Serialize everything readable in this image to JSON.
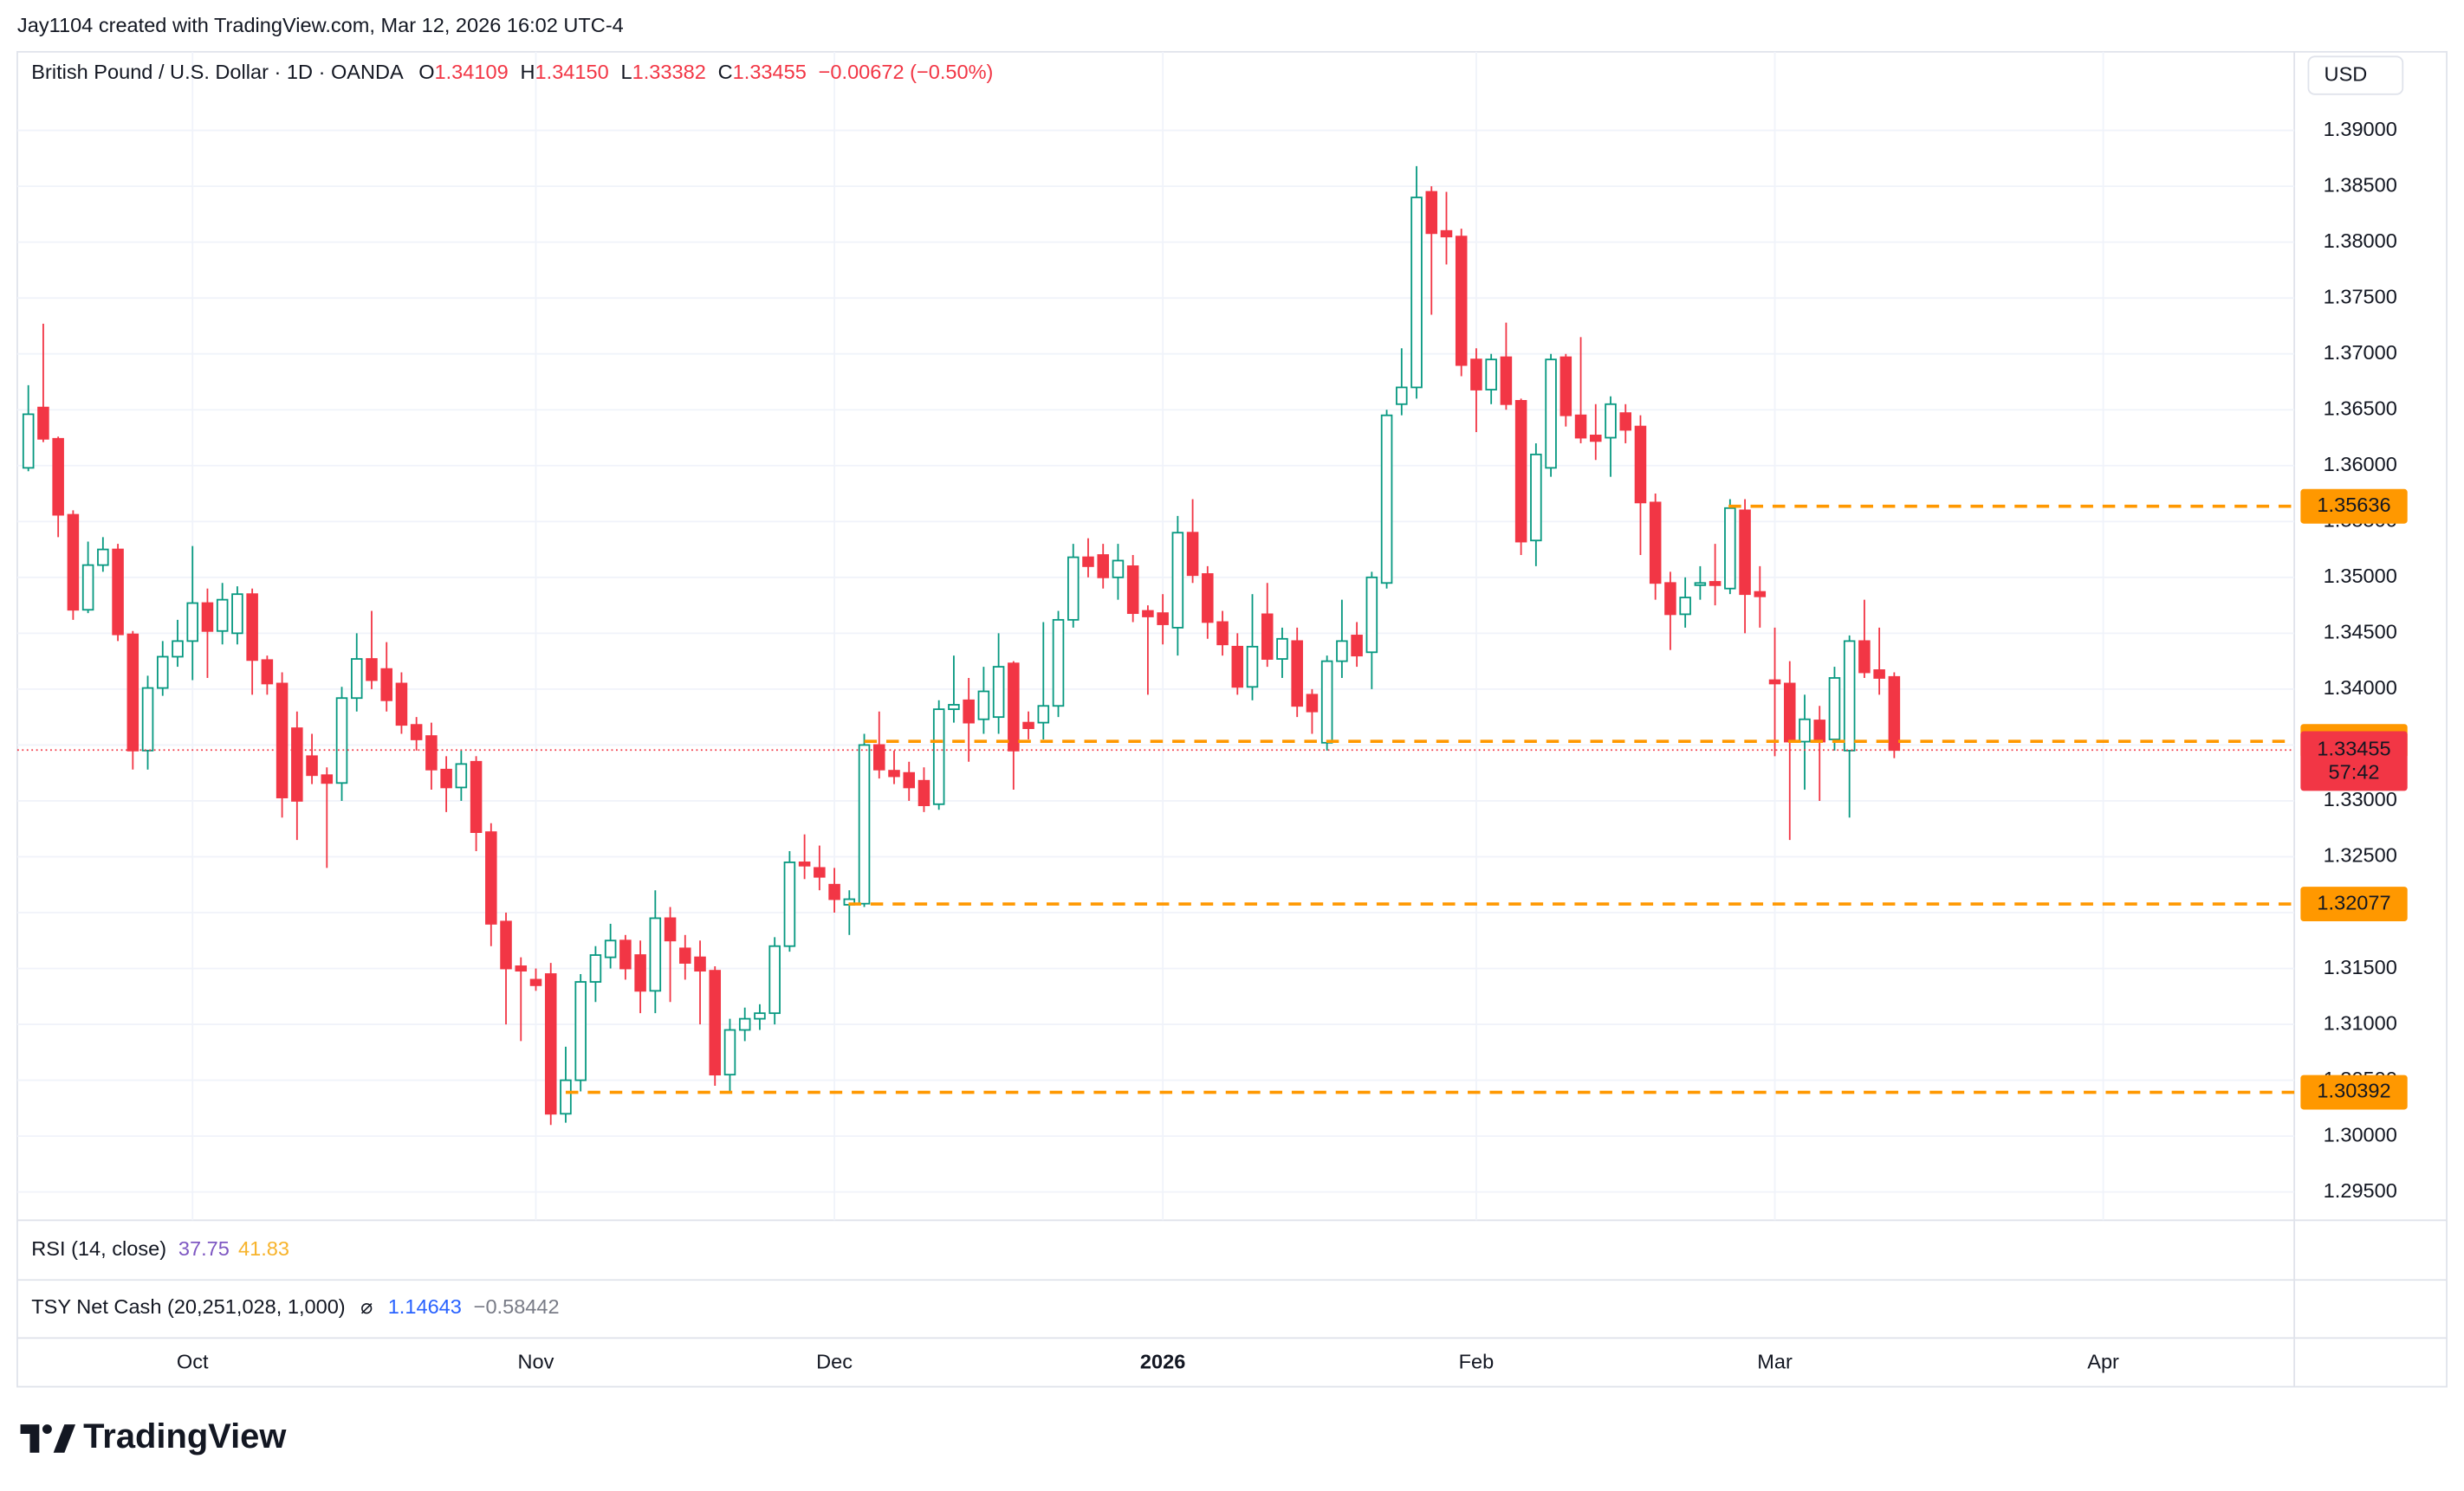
{
  "header": {
    "attribution": "Jay1104 created with TradingView.com, Mar 12, 2026 16:02 UTC-4"
  },
  "legend": {
    "symbol": "British Pound / U.S. Dollar · 1D · OANDA",
    "open_label": "O",
    "open": "1.34109",
    "high_label": "H",
    "high": "1.34150",
    "low_label": "L",
    "low": "1.33382",
    "close_label": "C",
    "close": "1.33455",
    "change": "−0.00672 (−0.50%)"
  },
  "chart_data": {
    "type": "candlestick",
    "currency": "USD",
    "up_color": "#089981",
    "down_color": "#f23645",
    "level_color": "#ff9800",
    "grid": true,
    "xlim": [
      -0.74,
      151.8
    ],
    "xticks": [
      {
        "value": 11,
        "label": "Oct"
      },
      {
        "value": 34,
        "label": "Nov"
      },
      {
        "value": 54,
        "label": "Dec"
      },
      {
        "value": 76,
        "label": "2026"
      },
      {
        "value": 97,
        "label": "Feb"
      },
      {
        "value": 117,
        "label": "Mar"
      },
      {
        "value": 139,
        "label": "Apr"
      }
    ],
    "ylim": [
      1.29247,
      1.39703
    ],
    "yticks": [
      {
        "value": 1.295,
        "label": "1.29500"
      },
      {
        "value": 1.3,
        "label": "1.30000"
      },
      {
        "value": 1.305,
        "label": "1.30500"
      },
      {
        "value": 1.31,
        "label": "1.31000"
      },
      {
        "value": 1.315,
        "label": "1.31500"
      },
      {
        "value": 1.32,
        "label": "1.32000"
      },
      {
        "value": 1.325,
        "label": "1.32500"
      },
      {
        "value": 1.33,
        "label": "1.33000"
      },
      {
        "value": 1.335,
        "label": "1.33500"
      },
      {
        "value": 1.34,
        "label": "1.34000"
      },
      {
        "value": 1.345,
        "label": "1.34500"
      },
      {
        "value": 1.35,
        "label": "1.35000"
      },
      {
        "value": 1.355,
        "label": "1.35500"
      },
      {
        "value": 1.36,
        "label": "1.36000"
      },
      {
        "value": 1.365,
        "label": "1.36500"
      },
      {
        "value": 1.37,
        "label": "1.37000"
      },
      {
        "value": 1.375,
        "label": "1.37500"
      },
      {
        "value": 1.38,
        "label": "1.38000"
      },
      {
        "value": 1.385,
        "label": "1.38500"
      },
      {
        "value": 1.39,
        "label": "1.39000"
      }
    ],
    "levels": [
      1.35636,
      1.33533,
      1.32077,
      1.30392
    ],
    "countdown": "57:42",
    "ohlc": [
      [
        1.3598,
        1.3672,
        1.3595,
        1.3646
      ],
      [
        1.3652,
        1.3727,
        1.3621,
        1.3624
      ],
      [
        1.3624,
        1.3626,
        1.3536,
        1.3556
      ],
      [
        1.3556,
        1.356,
        1.3462,
        1.3471
      ],
      [
        1.3471,
        1.3532,
        1.3468,
        1.3511
      ],
      [
        1.3511,
        1.3536,
        1.3505,
        1.3525
      ],
      [
        1.3525,
        1.353,
        1.3443,
        1.3449
      ],
      [
        1.3449,
        1.3452,
        1.3328,
        1.3345
      ],
      [
        1.3345,
        1.3412,
        1.3328,
        1.3401
      ],
      [
        1.3401,
        1.3443,
        1.3394,
        1.3429
      ],
      [
        1.3429,
        1.3462,
        1.342,
        1.3443
      ],
      [
        1.3443,
        1.3528,
        1.3408,
        1.3477
      ],
      [
        1.3477,
        1.349,
        1.341,
        1.3452
      ],
      [
        1.3452,
        1.3495,
        1.344,
        1.348
      ],
      [
        1.345,
        1.3492,
        1.344,
        1.3485
      ],
      [
        1.3485,
        1.349,
        1.3395,
        1.3426
      ],
      [
        1.3426,
        1.343,
        1.3395,
        1.3405
      ],
      [
        1.3405,
        1.3415,
        1.3285,
        1.3303
      ],
      [
        1.3365,
        1.338,
        1.3265,
        1.33
      ],
      [
        1.334,
        1.336,
        1.3315,
        1.3323
      ],
      [
        1.3323,
        1.333,
        1.324,
        1.3316
      ],
      [
        1.3316,
        1.3402,
        1.33,
        1.3392
      ],
      [
        1.3392,
        1.345,
        1.338,
        1.3427
      ],
      [
        1.3427,
        1.347,
        1.34,
        1.3408
      ],
      [
        1.3418,
        1.3442,
        1.338,
        1.339
      ],
      [
        1.3405,
        1.3415,
        1.336,
        1.3368
      ],
      [
        1.3368,
        1.3375,
        1.3345,
        1.3355
      ],
      [
        1.3358,
        1.337,
        1.331,
        1.3328
      ],
      [
        1.3328,
        1.334,
        1.329,
        1.3312
      ],
      [
        1.3312,
        1.3345,
        1.33,
        1.3333
      ],
      [
        1.3335,
        1.334,
        1.3255,
        1.3272
      ],
      [
        1.3272,
        1.328,
        1.317,
        1.319
      ],
      [
        1.3192,
        1.32,
        1.31,
        1.315
      ],
      [
        1.3152,
        1.316,
        1.3085,
        1.3148
      ],
      [
        1.314,
        1.315,
        1.313,
        1.3135
      ],
      [
        1.3145,
        1.3155,
        1.301,
        1.302
      ],
      [
        1.302,
        1.308,
        1.3012,
        1.305
      ],
      [
        1.305,
        1.3145,
        1.304,
        1.3138
      ],
      [
        1.3138,
        1.317,
        1.312,
        1.3162
      ],
      [
        1.316,
        1.319,
        1.315,
        1.3175
      ],
      [
        1.3175,
        1.318,
        1.314,
        1.315
      ],
      [
        1.3162,
        1.3175,
        1.311,
        1.313
      ],
      [
        1.313,
        1.322,
        1.311,
        1.3195
      ],
      [
        1.3195,
        1.3205,
        1.312,
        1.3175
      ],
      [
        1.3168,
        1.318,
        1.314,
        1.3155
      ],
      [
        1.316,
        1.3175,
        1.31,
        1.3148
      ],
      [
        1.3148,
        1.3152,
        1.3045,
        1.3055
      ],
      [
        1.3055,
        1.3105,
        1.304,
        1.3095
      ],
      [
        1.3095,
        1.3115,
        1.3085,
        1.3105
      ],
      [
        1.3105,
        1.3118,
        1.3095,
        1.311
      ],
      [
        1.311,
        1.3178,
        1.31,
        1.317
      ],
      [
        1.317,
        1.3255,
        1.3165,
        1.3245
      ],
      [
        1.3245,
        1.327,
        1.323,
        1.3242
      ],
      [
        1.324,
        1.326,
        1.322,
        1.3232
      ],
      [
        1.3225,
        1.324,
        1.32,
        1.3212
      ],
      [
        1.3207,
        1.322,
        1.318,
        1.3212
      ],
      [
        1.3208,
        1.336,
        1.3205,
        1.335
      ],
      [
        1.335,
        1.338,
        1.332,
        1.3328
      ],
      [
        1.3327,
        1.3345,
        1.3315,
        1.3322
      ],
      [
        1.3325,
        1.3335,
        1.33,
        1.3312
      ],
      [
        1.3318,
        1.333,
        1.329,
        1.3296
      ],
      [
        1.3297,
        1.339,
        1.3292,
        1.3382
      ],
      [
        1.3382,
        1.343,
        1.337,
        1.3386
      ],
      [
        1.339,
        1.341,
        1.3335,
        1.337
      ],
      [
        1.3373,
        1.342,
        1.336,
        1.3398
      ],
      [
        1.3375,
        1.345,
        1.336,
        1.342
      ],
      [
        1.3423,
        1.3425,
        1.331,
        1.3345
      ],
      [
        1.337,
        1.338,
        1.3355,
        1.3365
      ],
      [
        1.337,
        1.346,
        1.3355,
        1.3385
      ],
      [
        1.3385,
        1.347,
        1.3375,
        1.3462
      ],
      [
        1.3462,
        1.353,
        1.3455,
        1.3518
      ],
      [
        1.3518,
        1.3535,
        1.35,
        1.351
      ],
      [
        1.352,
        1.353,
        1.349,
        1.35
      ],
      [
        1.35,
        1.353,
        1.348,
        1.3515
      ],
      [
        1.351,
        1.352,
        1.346,
        1.3468
      ],
      [
        1.347,
        1.3475,
        1.3395,
        1.3465
      ],
      [
        1.3468,
        1.3485,
        1.344,
        1.3458
      ],
      [
        1.3455,
        1.3555,
        1.343,
        1.354
      ],
      [
        1.354,
        1.357,
        1.3495,
        1.3502
      ],
      [
        1.3503,
        1.351,
        1.3445,
        1.346
      ],
      [
        1.346,
        1.347,
        1.343,
        1.344
      ],
      [
        1.3438,
        1.345,
        1.3395,
        1.3402
      ],
      [
        1.3402,
        1.3485,
        1.339,
        1.3438
      ],
      [
        1.3467,
        1.3495,
        1.342,
        1.3427
      ],
      [
        1.3427,
        1.3455,
        1.341,
        1.3445
      ],
      [
        1.3443,
        1.3455,
        1.3375,
        1.3385
      ],
      [
        1.3395,
        1.34,
        1.336,
        1.338
      ],
      [
        1.3352,
        1.343,
        1.3345,
        1.3425
      ],
      [
        1.3425,
        1.348,
        1.341,
        1.3443
      ],
      [
        1.3448,
        1.346,
        1.342,
        1.343
      ],
      [
        1.3433,
        1.3505,
        1.34,
        1.35
      ],
      [
        1.3495,
        1.365,
        1.349,
        1.3645
      ],
      [
        1.3655,
        1.3705,
        1.3645,
        1.367
      ],
      [
        1.367,
        1.3868,
        1.366,
        1.384
      ],
      [
        1.3845,
        1.385,
        1.3735,
        1.3808
      ],
      [
        1.381,
        1.3845,
        1.378,
        1.3805
      ],
      [
        1.3805,
        1.3812,
        1.368,
        1.369
      ],
      [
        1.3695,
        1.3705,
        1.363,
        1.3668
      ],
      [
        1.3668,
        1.37,
        1.3655,
        1.3695
      ],
      [
        1.3697,
        1.3728,
        1.365,
        1.3655
      ],
      [
        1.3658,
        1.366,
        1.352,
        1.3532
      ],
      [
        1.3533,
        1.362,
        1.351,
        1.361
      ],
      [
        1.3598,
        1.37,
        1.359,
        1.3695
      ],
      [
        1.3697,
        1.37,
        1.3635,
        1.3645
      ],
      [
        1.3645,
        1.3715,
        1.362,
        1.3625
      ],
      [
        1.3627,
        1.3655,
        1.3605,
        1.3622
      ],
      [
        1.3625,
        1.3662,
        1.359,
        1.3655
      ],
      [
        1.3647,
        1.3655,
        1.362,
        1.3632
      ],
      [
        1.3635,
        1.3645,
        1.352,
        1.3567
      ],
      [
        1.3567,
        1.3575,
        1.348,
        1.3495
      ],
      [
        1.3495,
        1.3505,
        1.3435,
        1.3467
      ],
      [
        1.3467,
        1.35,
        1.3455,
        1.3482
      ],
      [
        1.3493,
        1.351,
        1.348,
        1.3495
      ],
      [
        1.3496,
        1.353,
        1.3475,
        1.3493
      ],
      [
        1.349,
        1.357,
        1.3485,
        1.3562
      ],
      [
        1.356,
        1.357,
        1.345,
        1.3485
      ],
      [
        1.3487,
        1.351,
        1.3455,
        1.3483
      ],
      [
        1.3408,
        1.3455,
        1.334,
        1.3405
      ],
      [
        1.3405,
        1.3425,
        1.3265,
        1.3353
      ],
      [
        1.3353,
        1.3395,
        1.331,
        1.3373
      ],
      [
        1.3372,
        1.3385,
        1.33,
        1.3353
      ],
      [
        1.3355,
        1.342,
        1.3345,
        1.341
      ],
      [
        1.3345,
        1.3448,
        1.3285,
        1.3443
      ],
      [
        1.3443,
        1.348,
        1.341,
        1.3415
      ],
      [
        1.3417,
        1.3455,
        1.3395,
        1.341
      ],
      [
        1.34109,
        1.3415,
        1.33382,
        1.33455
      ]
    ]
  },
  "indicators": [
    {
      "name": "RSI (14, close)",
      "values": [
        {
          "text": "37.75",
          "color": "#7e57c2"
        },
        {
          "text": "41.83",
          "color": "#f7b32b"
        }
      ]
    },
    {
      "name": "TSY Net Cash (20,251,028, 1,000)",
      "icon": "⌀",
      "values": [
        {
          "text": "1.14643",
          "color": "#2962ff"
        },
        {
          "text": "−0.58442",
          "color": "#787b86"
        }
      ]
    }
  ],
  "footer": {
    "brand": "TradingView"
  }
}
